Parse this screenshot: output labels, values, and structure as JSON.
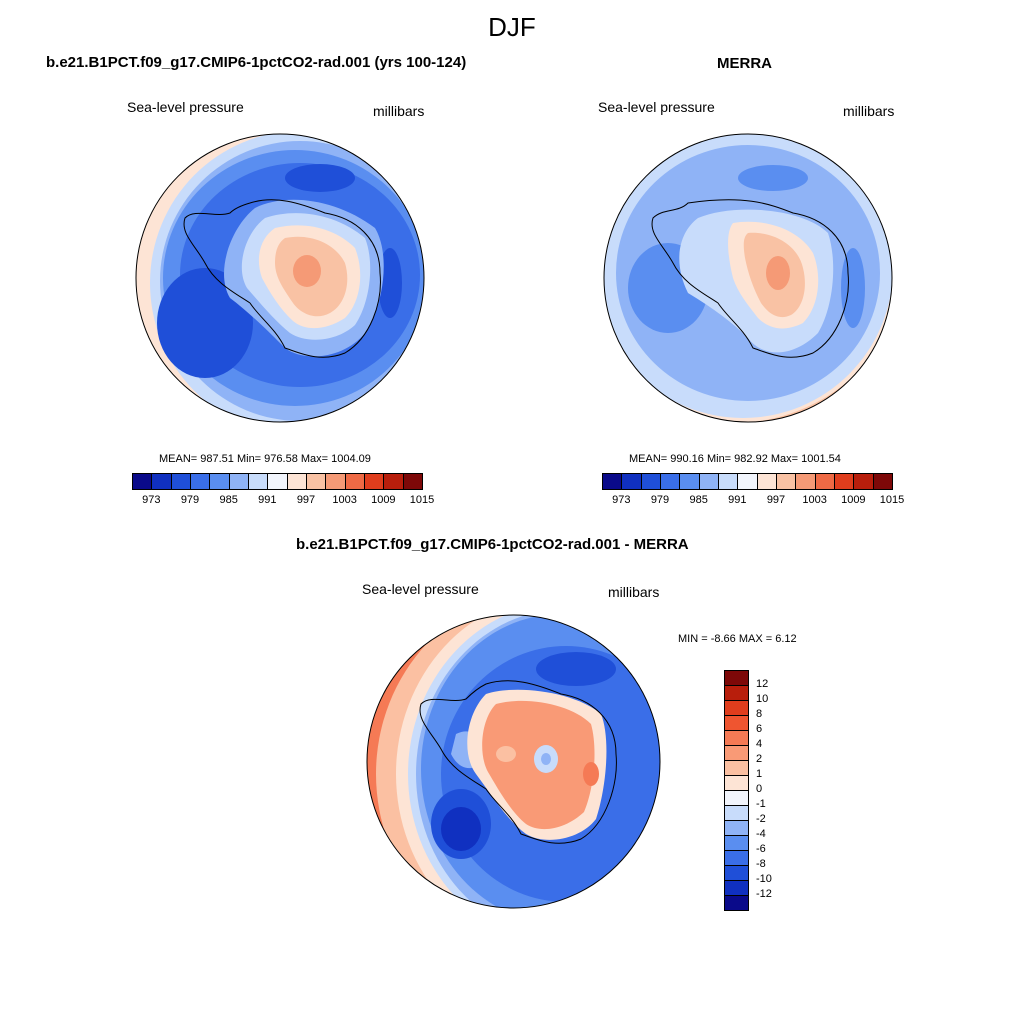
{
  "figure": {
    "title": "DJF"
  },
  "panels": [
    {
      "title": "b.e21.B1PCT.f09_g17.CMIP6-1pctCO2-rad.001 (yrs 100-124)",
      "variable": "Sea-level pressure",
      "units": "millibars",
      "stats": "MEAN= 987.51  Min= 976.58  Max= 1004.09"
    },
    {
      "title": "MERRA",
      "variable": "Sea-level pressure",
      "units": "millibars",
      "stats": "MEAN= 990.16  Min= 982.92  Max= 1001.54"
    },
    {
      "title": "b.e21.B1PCT.f09_g17.CMIP6-1pctCO2-rad.001 - MERRA",
      "variable": "Sea-level pressure",
      "units": "millibars",
      "stats": "MIN =  -8.66 MAX =   6.12"
    }
  ],
  "colorbar_abs": {
    "labels": [
      "973",
      "979",
      "985",
      "991",
      "997",
      "1003",
      "1009",
      "1015"
    ],
    "colors": [
      "#0a0a8a",
      "#1030c0",
      "#1f4fd8",
      "#3a6ee8",
      "#5a8ef0",
      "#8fb3f6",
      "#c8dcfb",
      "#f2f5fc",
      "#fde4d5",
      "#f9c2a4",
      "#f59a76",
      "#ef6a45",
      "#e03d1d",
      "#b81e0c",
      "#7d0808"
    ]
  },
  "colorbar_diff": {
    "labels": [
      "12",
      "10",
      "8",
      "6",
      "4",
      "2",
      "1",
      "0",
      "-1",
      "-2",
      "-4",
      "-6",
      "-8",
      "-10",
      "-12"
    ],
    "colors": [
      "#7d0808",
      "#b81e0c",
      "#e03d1d",
      "#ef5530",
      "#f57a55",
      "#f99a76",
      "#fbc0a2",
      "#fde4d5",
      "#f2f5fc",
      "#c8dcfb",
      "#8fb3f6",
      "#5a8ef0",
      "#3a6ee8",
      "#1f4fd8",
      "#1030c0",
      "#0a0a8a"
    ]
  }
}
